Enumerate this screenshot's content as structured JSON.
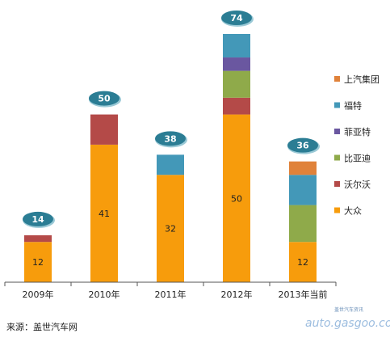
{
  "chart_data": {
    "type": "bar",
    "stacked": true,
    "categories": [
      "2009年",
      "2010年",
      "2011年",
      "2012年",
      "2013年当前"
    ],
    "series": [
      {
        "name": "大众",
        "color": "#f79c0c",
        "values": [
          12,
          41,
          32,
          50,
          12
        ],
        "show_labels": true
      },
      {
        "name": "沃尔沃",
        "color": "#b44a48",
        "values": [
          2,
          9,
          0,
          5,
          0
        ]
      },
      {
        "name": "比亚迪",
        "color": "#8faa4a",
        "values": [
          0,
          0,
          0,
          8,
          11
        ]
      },
      {
        "name": "菲亚特",
        "color": "#6a57a0",
        "values": [
          0,
          0,
          0,
          4,
          0
        ]
      },
      {
        "name": "福特",
        "color": "#4398b8",
        "values": [
          0,
          0,
          6,
          7,
          9
        ]
      },
      {
        "name": "上汽集团",
        "color": "#e0823a",
        "values": [
          0,
          0,
          0,
          0,
          4
        ]
      }
    ],
    "totals": [
      14,
      50,
      38,
      74,
      36
    ],
    "total_badge_color": "#2b7d94",
    "ylim": [
      0,
      76
    ],
    "grid": false,
    "legend_position": "right"
  },
  "source": "来源：盖世汽车网",
  "watermark": {
    "cn": "盖世汽车资讯",
    "url": "auto.gasgoo.com"
  }
}
